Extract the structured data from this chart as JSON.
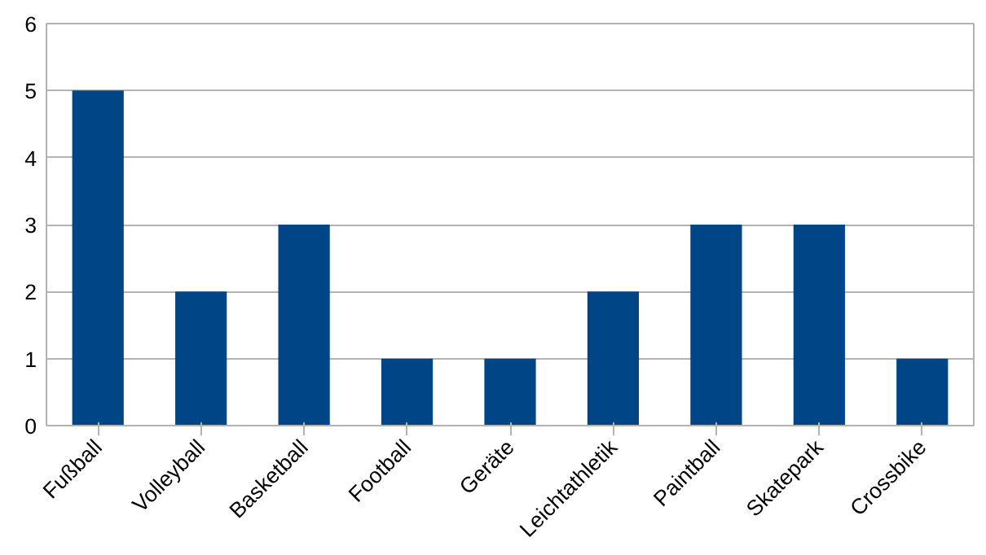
{
  "chart_data": {
    "type": "bar",
    "categories": [
      "Fußball",
      "Volleyball",
      "Basketball",
      "Football",
      "Geräte",
      "Leichtathletik",
      "Paintball",
      "Skatepark",
      "Crossbike"
    ],
    "values": [
      5,
      2,
      3,
      1,
      1,
      2,
      3,
      3,
      1
    ],
    "color": "#004586",
    "ylim": [
      0,
      6
    ],
    "yticks": [
      0,
      1,
      2,
      3,
      4,
      5,
      6
    ],
    "grid": "y"
  }
}
